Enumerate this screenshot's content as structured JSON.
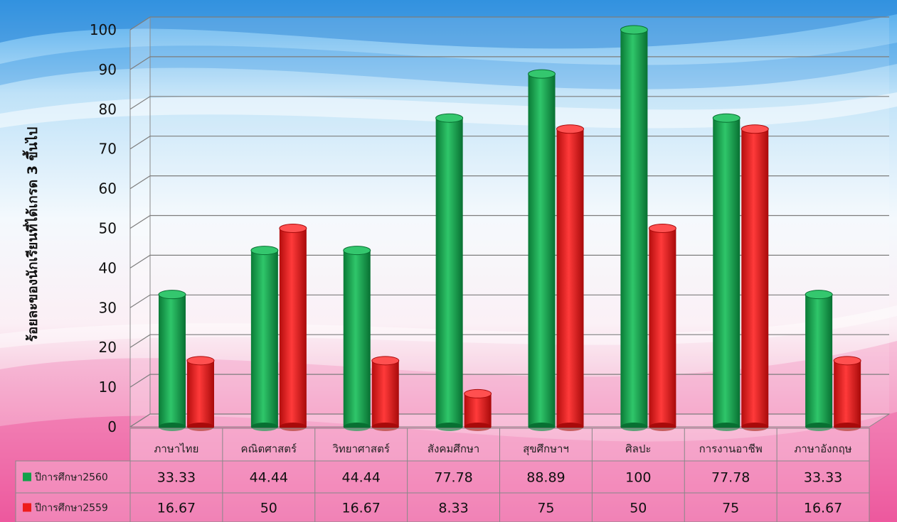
{
  "chart_data": {
    "type": "bar",
    "ylabel": "ร้อยละของนักเรียนที่ได้เกรด 3 ขึ้นไป",
    "ylim": [
      0,
      100
    ],
    "yticks": [
      "0",
      "10",
      "20",
      "30",
      "40",
      "50",
      "60",
      "70",
      "80",
      "90",
      "100"
    ],
    "grid": true,
    "legend": "table-left",
    "categories": [
      "ภาษาไทย",
      "คณิตศาสตร์",
      "วิทยาศาสตร์",
      "สังคมศึกษา",
      "สุขศึกษาฯ",
      "ศิลปะ",
      "การงานอาชีพ",
      "ภาษาอังกฤษ"
    ],
    "series": [
      {
        "name": "ปีการศึกษา2560",
        "color": "#12a04a",
        "values": [
          33.33,
          44.44,
          44.44,
          77.78,
          88.89,
          100,
          77.78,
          33.33
        ],
        "labels": [
          "33.33",
          "44.44",
          "44.44",
          "77.78",
          "88.89",
          "100",
          "77.78",
          "33.33"
        ]
      },
      {
        "name": "ปีการศึกษา2559",
        "color": "#ee1c1c",
        "values": [
          16.67,
          50,
          16.67,
          8.33,
          75,
          50,
          75,
          16.67
        ],
        "labels": [
          "16.67",
          "50",
          "16.67",
          "8.33",
          "75",
          "50",
          "75",
          "16.67"
        ]
      }
    ]
  }
}
